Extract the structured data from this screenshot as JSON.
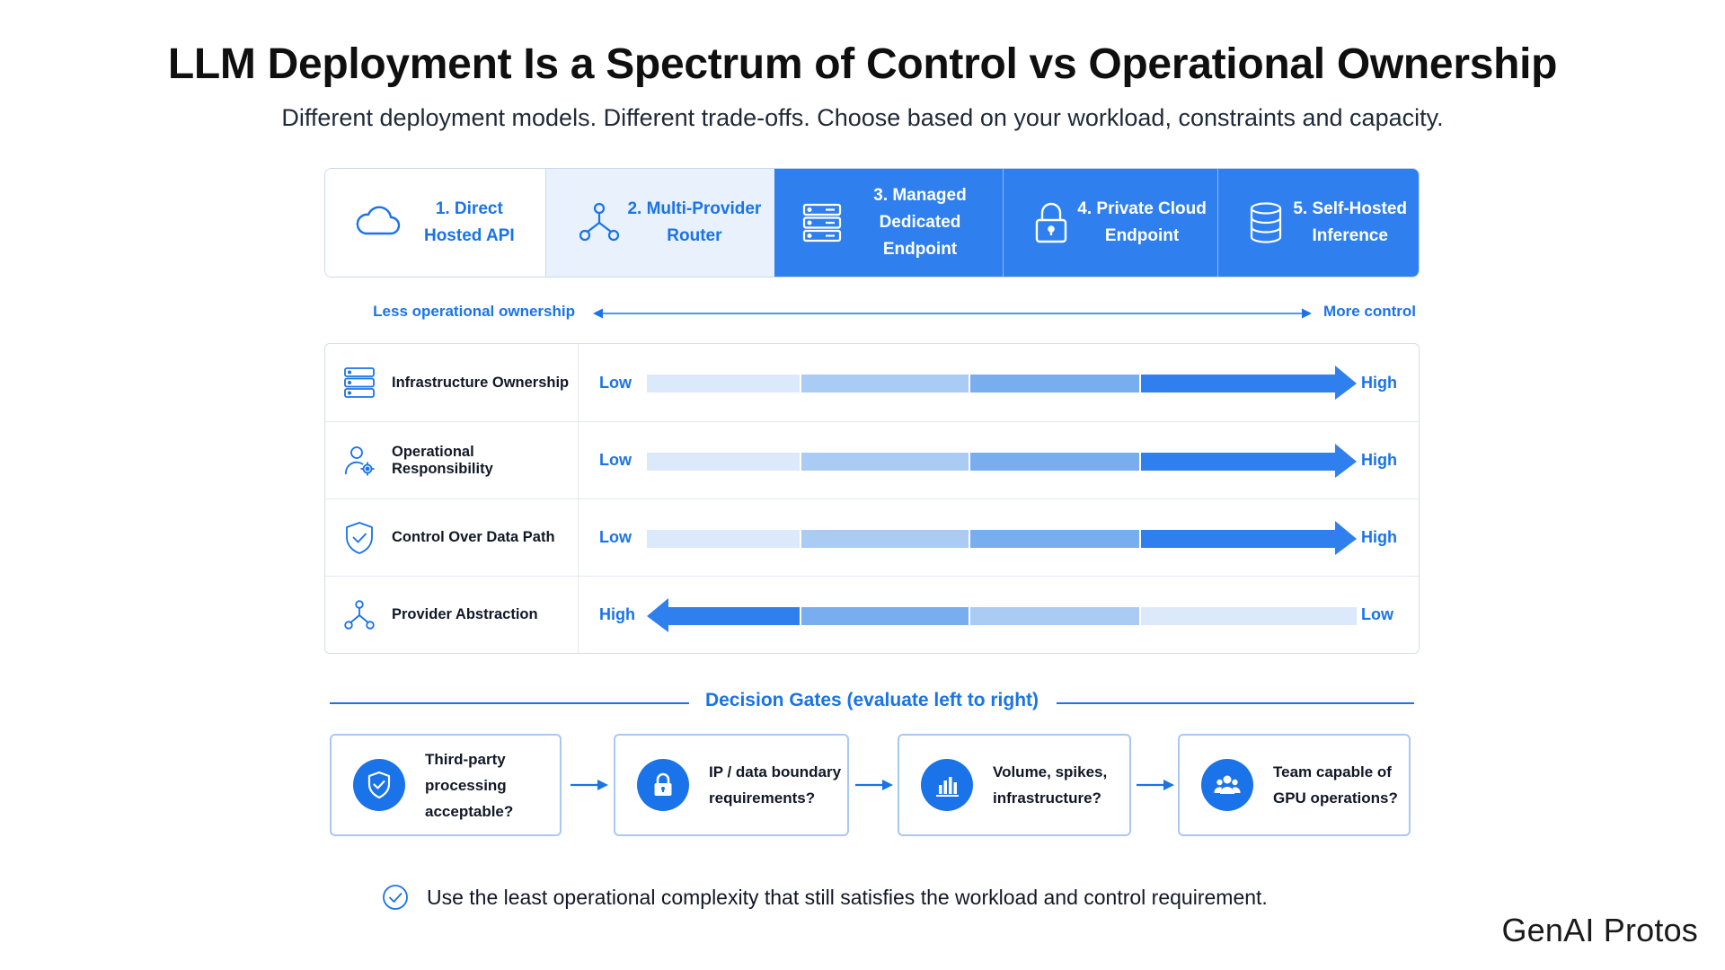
{
  "header": {
    "title": "LLM Deployment Is a Spectrum of Control vs Operational Ownership",
    "subtitle": "Different deployment models. Different trade-offs. Choose based on your workload, constraints and capacity."
  },
  "models": [
    {
      "label": "1. Direct\nHosted API",
      "icon": "cloud-icon"
    },
    {
      "label": "2. Multi-Provider\nRouter",
      "icon": "network-icon"
    },
    {
      "label": "3. Managed\nDedicated Endpoint",
      "icon": "server-icon"
    },
    {
      "label": "4. Private Cloud\nEndpoint",
      "icon": "lock-icon"
    },
    {
      "label": "5. Self-Hosted\nInference",
      "icon": "database-icon"
    }
  ],
  "axis": {
    "left_label": "Less operational ownership",
    "right_label": "More control"
  },
  "dimensions": [
    {
      "label": "Infrastructure Ownership",
      "icon": "server-icon",
      "start": "Low",
      "end": "High"
    },
    {
      "label": "Operational Responsibility",
      "icon": "user-gear-icon",
      "start": "Low",
      "end": "High"
    },
    {
      "label": "Control Over Data Path",
      "icon": "shield-check-icon",
      "start": "Low",
      "end": "High"
    },
    {
      "label": "Provider Abstraction",
      "icon": "network-icon",
      "start": "High",
      "end": "Low"
    }
  ],
  "gates": {
    "title": "Decision Gates (evaluate left to right)",
    "items": [
      {
        "text": "Third-party\nprocessing\nacceptable?",
        "icon": "shield-check-icon"
      },
      {
        "text": "IP / data boundary\nrequirements?",
        "icon": "lock-icon"
      },
      {
        "text": "Volume, spikes,\ninfrastructure?",
        "icon": "bar-chart-icon"
      },
      {
        "text": "Team capable of\nGPU operations?",
        "icon": "team-icon"
      }
    ]
  },
  "footer": {
    "note": "Use the least operational complexity that still satisfies the workload and control requirement.",
    "brand": "GenAI Protos"
  },
  "colors": {
    "accent": "#1a73e8",
    "tab_active": "#2f80ee",
    "tab_light": "#e8f1fc"
  }
}
